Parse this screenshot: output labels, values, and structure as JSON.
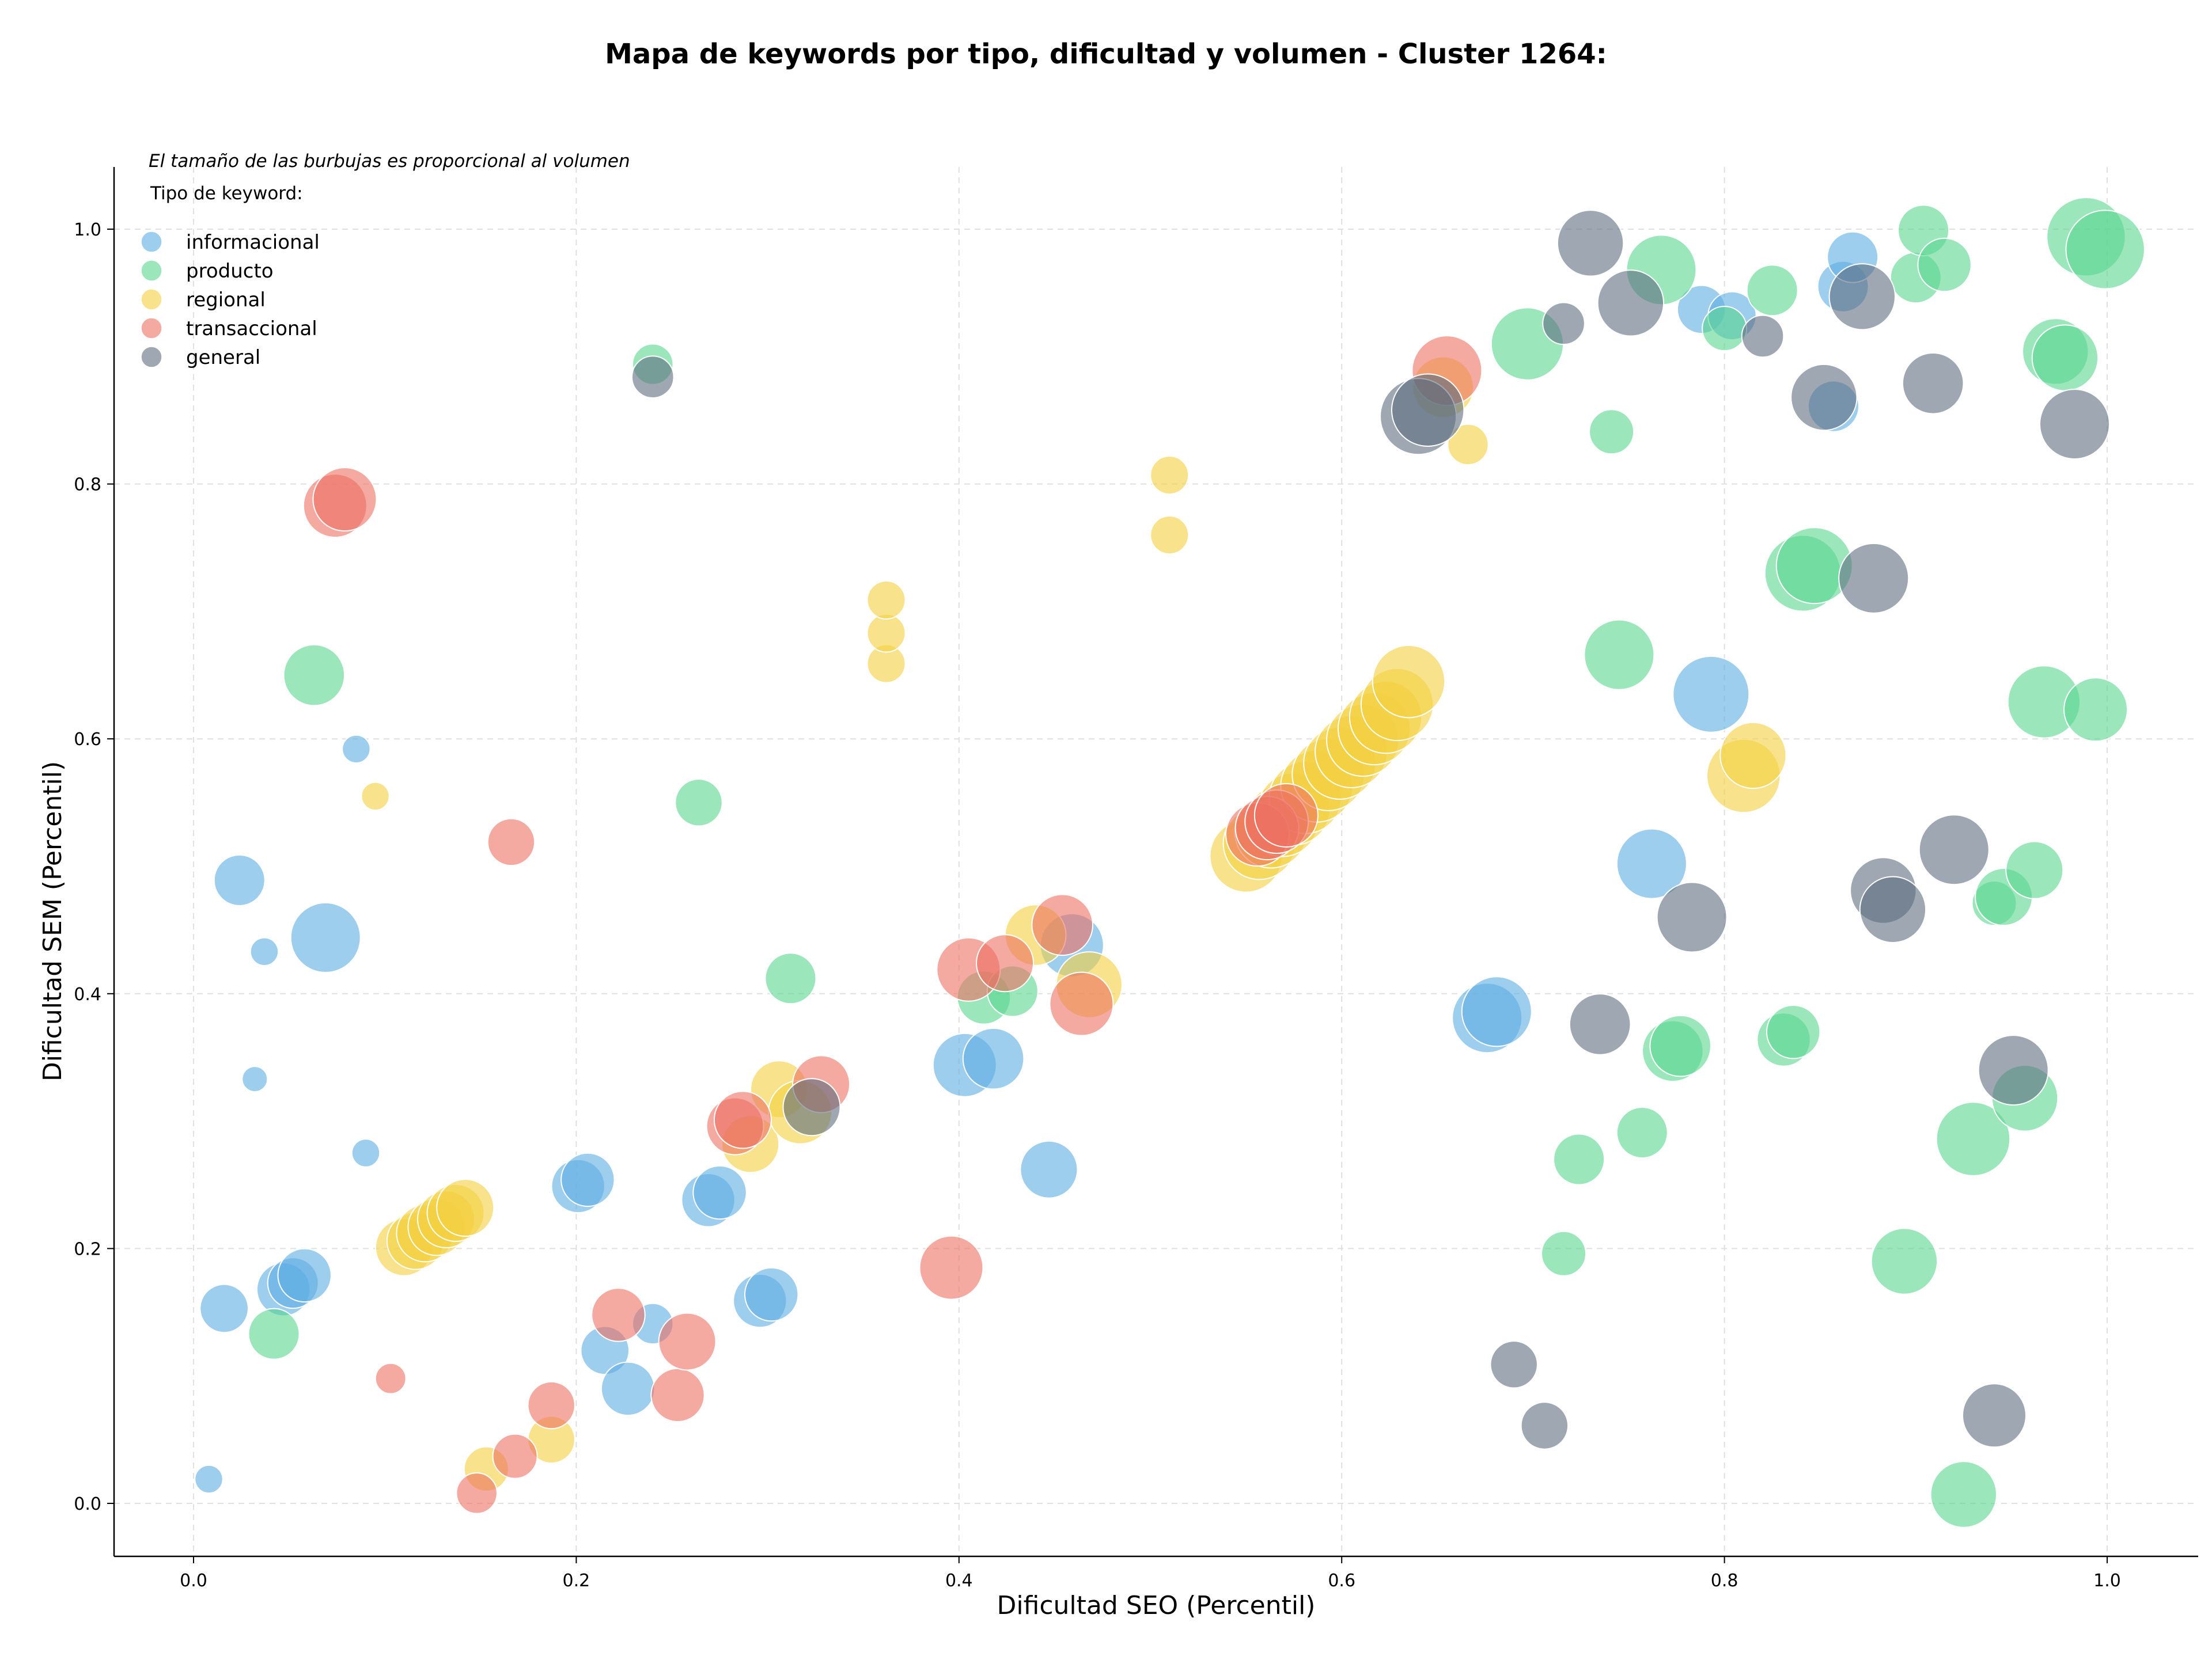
{
  "chart_data": {
    "type": "scatter",
    "title": "Mapa de keywords por tipo, dificultad y volumen - Cluster 1264:",
    "xlabel": "Dificultad SEO (Percentil)",
    "ylabel": "Dificultad SEM (Percentil)",
    "xlim": [
      -0.04,
      1.05
    ],
    "ylim": [
      -0.04,
      1.05
    ],
    "xticks": [
      "0.0",
      "0.2",
      "0.4",
      "0.6",
      "0.8",
      "1.0"
    ],
    "yticks": [
      "0.0",
      "0.2",
      "0.4",
      "0.6",
      "0.8",
      "1.0"
    ],
    "grid": true,
    "annotation": "El tamaño de las burbujas es proporcional al volumen",
    "legend_title": "Tipo de keyword:",
    "legend_position": "top-left",
    "series": [
      {
        "name": "informacional",
        "color": "#5dade2",
        "points": [
          {
            "x": 0.008,
            "y": 0.019,
            "s": 22
          },
          {
            "x": 0.016,
            "y": 0.153,
            "s": 38
          },
          {
            "x": 0.024,
            "y": 0.489,
            "s": 40
          },
          {
            "x": 0.032,
            "y": 0.333,
            "s": 20
          },
          {
            "x": 0.037,
            "y": 0.433,
            "s": 22
          },
          {
            "x": 0.047,
            "y": 0.168,
            "s": 42
          },
          {
            "x": 0.052,
            "y": 0.173,
            "s": 40
          },
          {
            "x": 0.058,
            "y": 0.179,
            "s": 42
          },
          {
            "x": 0.069,
            "y": 0.444,
            "s": 55
          },
          {
            "x": 0.085,
            "y": 0.592,
            "s": 22
          },
          {
            "x": 0.09,
            "y": 0.275,
            "s": 22
          },
          {
            "x": 0.201,
            "y": 0.249,
            "s": 42
          },
          {
            "x": 0.206,
            "y": 0.254,
            "s": 42
          },
          {
            "x": 0.215,
            "y": 0.12,
            "s": 38
          },
          {
            "x": 0.227,
            "y": 0.09,
            "s": 42
          },
          {
            "x": 0.24,
            "y": 0.141,
            "s": 32
          },
          {
            "x": 0.269,
            "y": 0.238,
            "s": 42
          },
          {
            "x": 0.275,
            "y": 0.244,
            "s": 42
          },
          {
            "x": 0.296,
            "y": 0.159,
            "s": 42
          },
          {
            "x": 0.302,
            "y": 0.164,
            "s": 42
          },
          {
            "x": 0.403,
            "y": 0.344,
            "s": 50
          },
          {
            "x": 0.418,
            "y": 0.349,
            "s": 48
          },
          {
            "x": 0.447,
            "y": 0.262,
            "s": 45
          },
          {
            "x": 0.459,
            "y": 0.438,
            "s": 50
          },
          {
            "x": 0.676,
            "y": 0.381,
            "s": 55
          },
          {
            "x": 0.681,
            "y": 0.386,
            "s": 55
          },
          {
            "x": 0.762,
            "y": 0.502,
            "s": 55
          },
          {
            "x": 0.793,
            "y": 0.635,
            "s": 60
          },
          {
            "x": 0.788,
            "y": 0.937,
            "s": 38
          },
          {
            "x": 0.804,
            "y": 0.932,
            "s": 38
          },
          {
            "x": 0.857,
            "y": 0.861,
            "s": 40
          },
          {
            "x": 0.862,
            "y": 0.955,
            "s": 40
          },
          {
            "x": 0.867,
            "y": 0.978,
            "s": 40
          }
        ]
      },
      {
        "name": "producto",
        "color": "#58d68d",
        "points": [
          {
            "x": 0.042,
            "y": 0.133,
            "s": 40
          },
          {
            "x": 0.063,
            "y": 0.65,
            "s": 48
          },
          {
            "x": 0.24,
            "y": 0.894,
            "s": 32
          },
          {
            "x": 0.264,
            "y": 0.55,
            "s": 37
          },
          {
            "x": 0.312,
            "y": 0.412,
            "s": 40
          },
          {
            "x": 0.413,
            "y": 0.397,
            "s": 42
          },
          {
            "x": 0.428,
            "y": 0.402,
            "s": 40
          },
          {
            "x": 0.697,
            "y": 0.91,
            "s": 57
          },
          {
            "x": 0.716,
            "y": 0.196,
            "s": 35
          },
          {
            "x": 0.724,
            "y": 0.27,
            "s": 40
          },
          {
            "x": 0.741,
            "y": 0.841,
            "s": 35
          },
          {
            "x": 0.745,
            "y": 0.666,
            "s": 55
          },
          {
            "x": 0.757,
            "y": 0.291,
            "s": 40
          },
          {
            "x": 0.767,
            "y": 0.968,
            "s": 55
          },
          {
            "x": 0.773,
            "y": 0.355,
            "s": 48
          },
          {
            "x": 0.777,
            "y": 0.359,
            "s": 48
          },
          {
            "x": 0.8,
            "y": 0.922,
            "s": 35
          },
          {
            "x": 0.825,
            "y": 0.952,
            "s": 40
          },
          {
            "x": 0.831,
            "y": 0.364,
            "s": 42
          },
          {
            "x": 0.836,
            "y": 0.37,
            "s": 42
          },
          {
            "x": 0.841,
            "y": 0.73,
            "s": 60
          },
          {
            "x": 0.847,
            "y": 0.736,
            "s": 60
          },
          {
            "x": 0.894,
            "y": 0.19,
            "s": 52
          },
          {
            "x": 0.9,
            "y": 0.962,
            "s": 40
          },
          {
            "x": 0.904,
            "y": 0.999,
            "s": 40
          },
          {
            "x": 0.915,
            "y": 0.972,
            "s": 42
          },
          {
            "x": 0.925,
            "y": 0.007,
            "s": 52
          },
          {
            "x": 0.93,
            "y": 0.286,
            "s": 58
          },
          {
            "x": 0.941,
            "y": 0.471,
            "s": 35
          },
          {
            "x": 0.946,
            "y": 0.476,
            "s": 45
          },
          {
            "x": 0.957,
            "y": 0.318,
            "s": 52
          },
          {
            "x": 0.962,
            "y": 0.497,
            "s": 45
          },
          {
            "x": 0.967,
            "y": 0.629,
            "s": 57
          },
          {
            "x": 0.973,
            "y": 0.904,
            "s": 52
          },
          {
            "x": 0.978,
            "y": 0.899,
            "s": 52
          },
          {
            "x": 0.989,
            "y": 0.994,
            "s": 62
          },
          {
            "x": 0.994,
            "y": 0.623,
            "s": 50
          },
          {
            "x": 0.999,
            "y": 0.984,
            "s": 62
          }
        ]
      },
      {
        "name": "regional",
        "color": "#f4d03f",
        "points": [
          {
            "x": 0.095,
            "y": 0.555,
            "s": 22
          },
          {
            "x": 0.11,
            "y": 0.201,
            "s": 45
          },
          {
            "x": 0.116,
            "y": 0.206,
            "s": 45
          },
          {
            "x": 0.121,
            "y": 0.212,
            "s": 45
          },
          {
            "x": 0.127,
            "y": 0.217,
            "s": 45
          },
          {
            "x": 0.132,
            "y": 0.223,
            "s": 45
          },
          {
            "x": 0.137,
            "y": 0.228,
            "s": 45
          },
          {
            "x": 0.142,
            "y": 0.232,
            "s": 45
          },
          {
            "x": 0.153,
            "y": 0.027,
            "s": 35
          },
          {
            "x": 0.187,
            "y": 0.05,
            "s": 37
          },
          {
            "x": 0.291,
            "y": 0.282,
            "s": 45
          },
          {
            "x": 0.306,
            "y": 0.325,
            "s": 45
          },
          {
            "x": 0.317,
            "y": 0.307,
            "s": 50
          },
          {
            "x": 0.362,
            "y": 0.659,
            "s": 30
          },
          {
            "x": 0.362,
            "y": 0.683,
            "s": 30
          },
          {
            "x": 0.362,
            "y": 0.709,
            "s": 30
          },
          {
            "x": 0.44,
            "y": 0.446,
            "s": 48
          },
          {
            "x": 0.468,
            "y": 0.407,
            "s": 52
          },
          {
            "x": 0.51,
            "y": 0.76,
            "s": 30
          },
          {
            "x": 0.51,
            "y": 0.807,
            "s": 30
          },
          {
            "x": 0.55,
            "y": 0.508,
            "s": 57
          },
          {
            "x": 0.557,
            "y": 0.518,
            "s": 57
          },
          {
            "x": 0.563,
            "y": 0.527,
            "s": 57
          },
          {
            "x": 0.569,
            "y": 0.536,
            "s": 57
          },
          {
            "x": 0.575,
            "y": 0.545,
            "s": 57
          },
          {
            "x": 0.581,
            "y": 0.554,
            "s": 57
          },
          {
            "x": 0.587,
            "y": 0.563,
            "s": 57
          },
          {
            "x": 0.593,
            "y": 0.572,
            "s": 57
          },
          {
            "x": 0.599,
            "y": 0.581,
            "s": 57
          },
          {
            "x": 0.605,
            "y": 0.59,
            "s": 57
          },
          {
            "x": 0.611,
            "y": 0.599,
            "s": 57
          },
          {
            "x": 0.617,
            "y": 0.608,
            "s": 57
          },
          {
            "x": 0.623,
            "y": 0.617,
            "s": 57
          },
          {
            "x": 0.629,
            "y": 0.627,
            "s": 57
          },
          {
            "x": 0.635,
            "y": 0.645,
            "s": 57
          },
          {
            "x": 0.653,
            "y": 0.876,
            "s": 48
          },
          {
            "x": 0.666,
            "y": 0.831,
            "s": 32
          },
          {
            "x": 0.81,
            "y": 0.571,
            "s": 58
          },
          {
            "x": 0.815,
            "y": 0.587,
            "s": 52
          }
        ]
      },
      {
        "name": "transaccional",
        "color": "#ec7063",
        "points": [
          {
            "x": 0.103,
            "y": 0.098,
            "s": 24
          },
          {
            "x": 0.148,
            "y": 0.008,
            "s": 32
          },
          {
            "x": 0.166,
            "y": 0.519,
            "s": 37
          },
          {
            "x": 0.168,
            "y": 0.037,
            "s": 35
          },
          {
            "x": 0.187,
            "y": 0.077,
            "s": 37
          },
          {
            "x": 0.222,
            "y": 0.148,
            "s": 42
          },
          {
            "x": 0.253,
            "y": 0.085,
            "s": 42
          },
          {
            "x": 0.258,
            "y": 0.127,
            "s": 45
          },
          {
            "x": 0.283,
            "y": 0.296,
            "s": 45
          },
          {
            "x": 0.287,
            "y": 0.301,
            "s": 45
          },
          {
            "x": 0.328,
            "y": 0.329,
            "s": 45
          },
          {
            "x": 0.396,
            "y": 0.185,
            "s": 50
          },
          {
            "x": 0.405,
            "y": 0.419,
            "s": 50
          },
          {
            "x": 0.424,
            "y": 0.424,
            "s": 45
          },
          {
            "x": 0.454,
            "y": 0.454,
            "s": 48
          },
          {
            "x": 0.464,
            "y": 0.392,
            "s": 50
          },
          {
            "x": 0.074,
            "y": 0.783,
            "s": 50
          },
          {
            "x": 0.079,
            "y": 0.788,
            "s": 50
          },
          {
            "x": 0.556,
            "y": 0.525,
            "s": 50
          },
          {
            "x": 0.561,
            "y": 0.53,
            "s": 50
          },
          {
            "x": 0.566,
            "y": 0.535,
            "s": 50
          },
          {
            "x": 0.571,
            "y": 0.54,
            "s": 50
          },
          {
            "x": 0.655,
            "y": 0.889,
            "s": 55
          }
        ]
      },
      {
        "name": "general",
        "color": "#5d6d7e",
        "points": [
          {
            "x": 0.24,
            "y": 0.884,
            "s": 33
          },
          {
            "x": 0.323,
            "y": 0.311,
            "s": 45
          },
          {
            "x": 0.64,
            "y": 0.853,
            "s": 60
          },
          {
            "x": 0.645,
            "y": 0.858,
            "s": 57
          },
          {
            "x": 0.69,
            "y": 0.109,
            "s": 37
          },
          {
            "x": 0.706,
            "y": 0.061,
            "s": 37
          },
          {
            "x": 0.716,
            "y": 0.926,
            "s": 33
          },
          {
            "x": 0.73,
            "y": 0.989,
            "s": 52
          },
          {
            "x": 0.735,
            "y": 0.376,
            "s": 48
          },
          {
            "x": 0.751,
            "y": 0.942,
            "s": 52
          },
          {
            "x": 0.783,
            "y": 0.46,
            "s": 55
          },
          {
            "x": 0.82,
            "y": 0.916,
            "s": 33
          },
          {
            "x": 0.852,
            "y": 0.868,
            "s": 52
          },
          {
            "x": 0.872,
            "y": 0.947,
            "s": 52
          },
          {
            "x": 0.878,
            "y": 0.726,
            "s": 55
          },
          {
            "x": 0.883,
            "y": 0.481,
            "s": 52
          },
          {
            "x": 0.888,
            "y": 0.466,
            "s": 52
          },
          {
            "x": 0.909,
            "y": 0.879,
            "s": 48
          },
          {
            "x": 0.92,
            "y": 0.513,
            "s": 55
          },
          {
            "x": 0.941,
            "y": 0.069,
            "s": 50
          },
          {
            "x": 0.951,
            "y": 0.34,
            "s": 55
          },
          {
            "x": 0.983,
            "y": 0.847,
            "s": 55
          }
        ]
      }
    ]
  }
}
